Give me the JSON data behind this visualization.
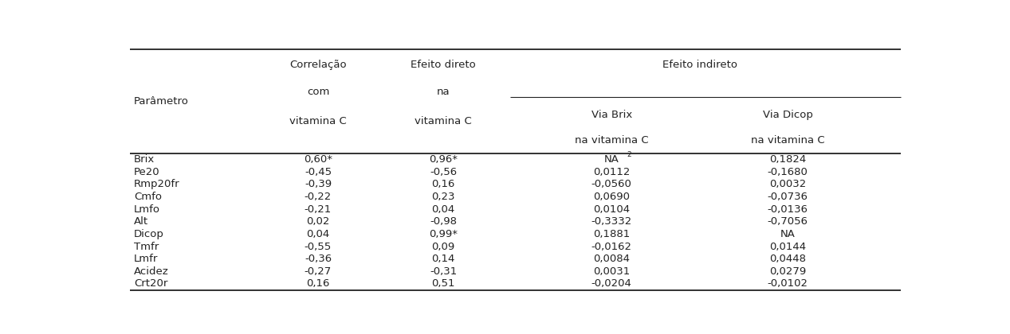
{
  "rows": [
    [
      "Brix",
      "0,60*",
      "0,96*",
      "NA2",
      "0,1824"
    ],
    [
      "Pe20",
      "-0,45",
      "-0,56",
      "0,0112",
      "-0,1680"
    ],
    [
      "Rmp20fr",
      "-0,39",
      "0,16",
      "-0,0560",
      "0,0032"
    ],
    [
      "Cmfo",
      "-0,22",
      "0,23",
      "0,0690",
      "-0,0736"
    ],
    [
      "Lmfo",
      "-0,21",
      "0,04",
      "0,0104",
      "-0,0136"
    ],
    [
      "Alt",
      "0,02",
      "-0,98",
      "-0,3332",
      "-0,7056"
    ],
    [
      "Dicop",
      "0,04",
      "0,99*",
      "0,1881",
      "NA"
    ],
    [
      "Tmfr",
      "-0,55",
      "0,09",
      "-0,0162",
      "0,0144"
    ],
    [
      "Lmfr",
      "-0,36",
      "0,14",
      "0,0084",
      "0,0448"
    ],
    [
      "Acidez",
      "-0,27",
      "-0,31",
      "0,0031",
      "0,0279"
    ],
    [
      "Crt20r",
      "0,16",
      "0,51",
      "-0,0204",
      "-0,0102"
    ]
  ],
  "background_color": "#ffffff",
  "text_color": "#222222",
  "font_size": 9.5,
  "header_font_size": 9.5
}
